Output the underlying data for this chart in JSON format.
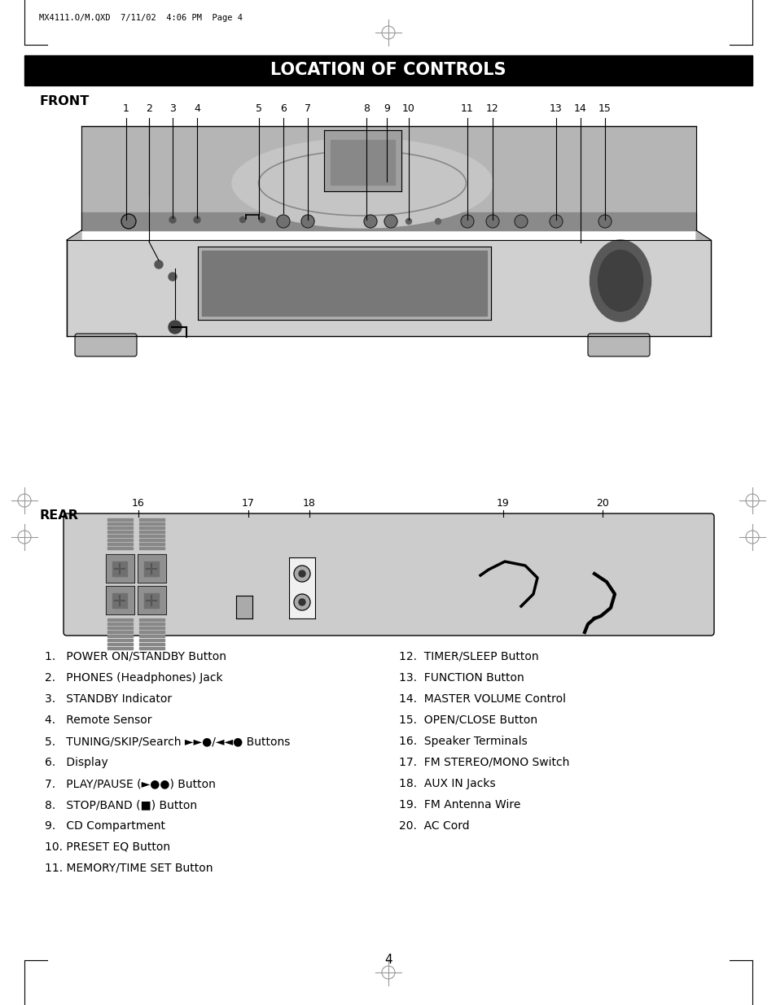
{
  "title": "LOCATION OF CONTROLS",
  "title_bg": "#000000",
  "title_color": "#ffffff",
  "page_bg": "#ffffff",
  "header_text": "MX4111.O/M.QXD  7/11/02  4:06 PM  Page 4",
  "front_label": "FRONT",
  "rear_label": "REAR",
  "front_numbers": [
    "1",
    "2",
    "3",
    "4",
    "5",
    "6",
    "7",
    "8",
    "9",
    "10",
    "11",
    "12",
    "13",
    "14",
    "15"
  ],
  "rear_numbers_data": [
    [
      "16",
      170
    ],
    [
      "17",
      305
    ],
    [
      "18",
      380
    ],
    [
      "19",
      618
    ],
    [
      "20",
      740
    ]
  ],
  "left_items": [
    "1.   POWER ON/STANDBY Button",
    "2.   PHONES (Headphones) Jack",
    "3.   STANDBY Indicator",
    "4.   Remote Sensor",
    "5.   TUNING/SKIP/Search ►►●/◄◄● Buttons",
    "6.   Display",
    "7.   PLAY/PAUSE (►●●) Button",
    "8.   STOP/BAND (■) Button",
    "9.   CD Compartment",
    "10. PRESET EQ Button",
    "11. MEMORY/TIME SET Button"
  ],
  "right_items": [
    "12.  TIMER/SLEEP Button",
    "13.  FUNCTION Button",
    "14.  MASTER VOLUME Control",
    "15.  OPEN/CLOSE Button",
    "16.  Speaker Terminals",
    "17.  FM STEREO/MONO Switch",
    "18.  AUX IN Jacks",
    "19.  FM Antenna Wire",
    "20.  AC Cord"
  ],
  "page_number": "4",
  "gray_light": "#c8c8c8",
  "gray_mid": "#aaaaaa",
  "gray_dark": "#888888",
  "gray_darker": "#666666",
  "gray_darkest": "#444444",
  "black": "#000000",
  "white": "#ffffff"
}
